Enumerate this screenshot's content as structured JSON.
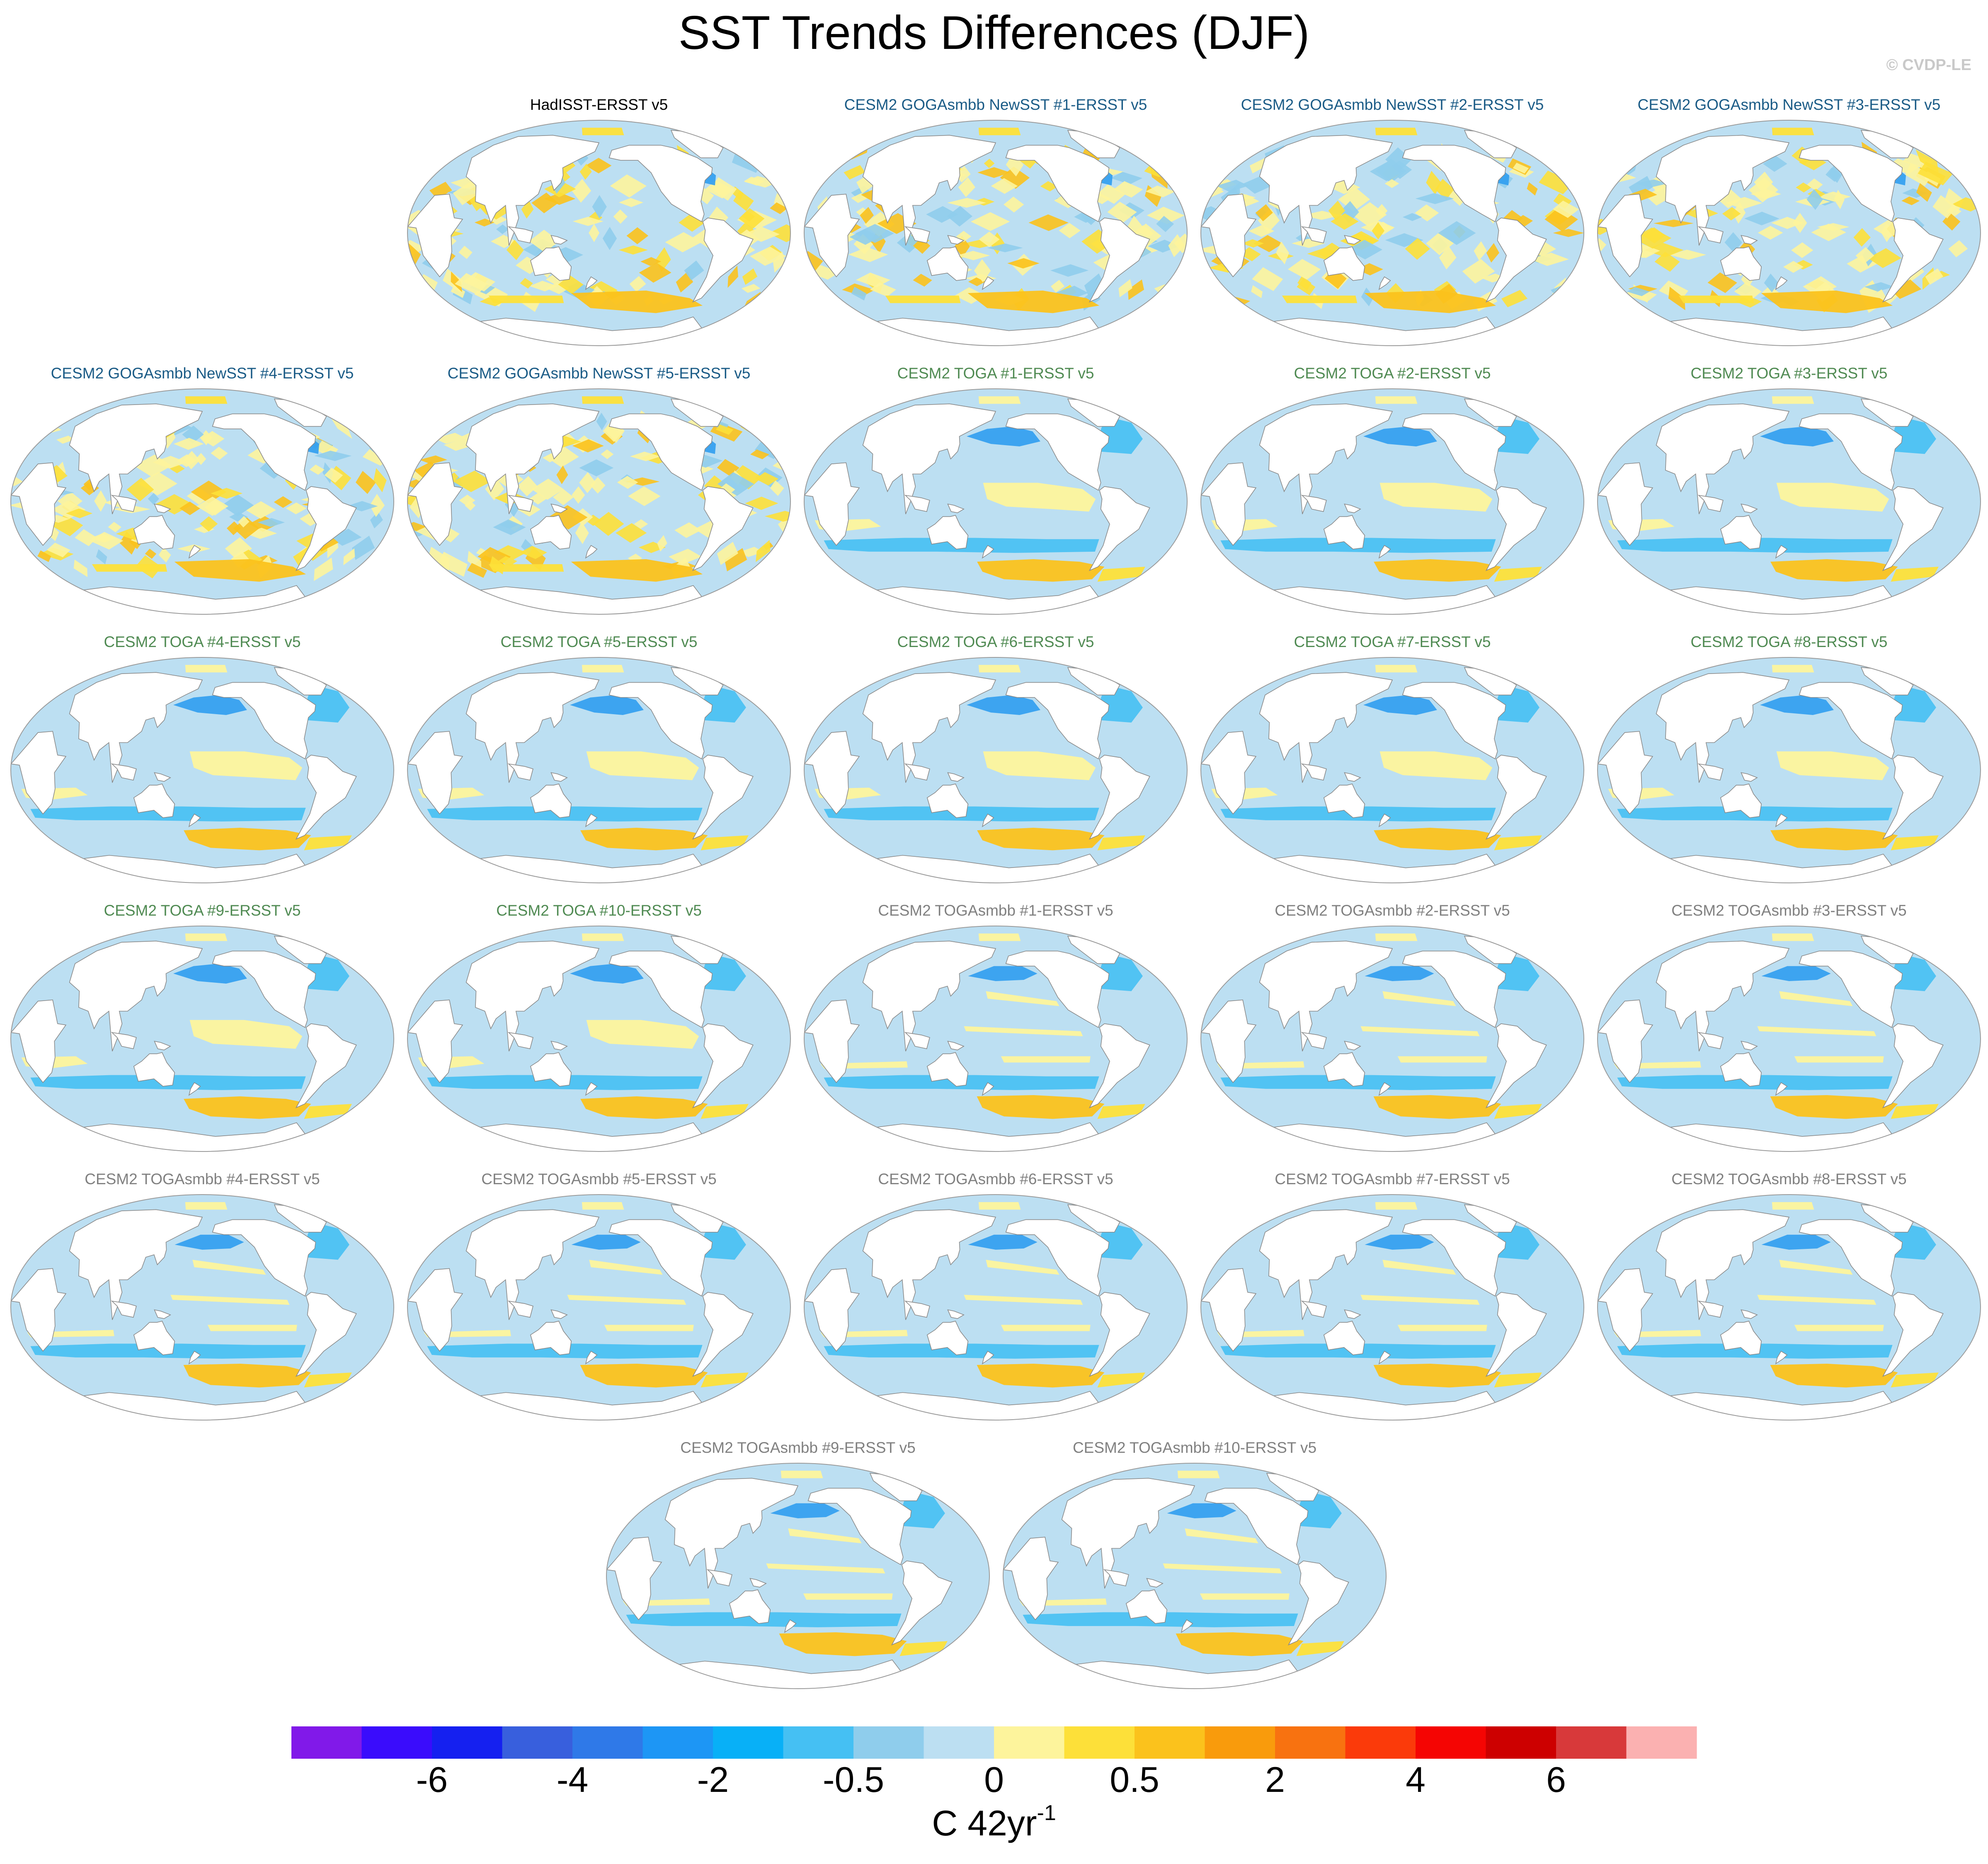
{
  "title": "SST Trends Differences (DJF)",
  "credit": "© CVDP-LE",
  "colors": {
    "obs_title": "#000000",
    "goga_title": "#1a5b86",
    "toga_title": "#4f8a52",
    "togasmbb_title": "#808080",
    "ocean": "#bcdff2",
    "land": "#ffffff",
    "coast": "#8a8a8a"
  },
  "panels": [
    {
      "title": "HadISST-ERSST v5",
      "group": "obs"
    },
    {
      "title": "CESM2 GOGAsmbb NewSST #1-ERSST v5",
      "group": "goga"
    },
    {
      "title": "CESM2 GOGAsmbb NewSST #2-ERSST v5",
      "group": "goga"
    },
    {
      "title": "CESM2 GOGAsmbb NewSST #3-ERSST v5",
      "group": "goga"
    },
    {
      "title": "CESM2 GOGAsmbb NewSST #4-ERSST v5",
      "group": "goga"
    },
    {
      "title": "CESM2 GOGAsmbb NewSST #5-ERSST v5",
      "group": "goga"
    },
    {
      "title": "CESM2 TOGA #1-ERSST v5",
      "group": "toga"
    },
    {
      "title": "CESM2 TOGA #2-ERSST v5",
      "group": "toga"
    },
    {
      "title": "CESM2 TOGA #3-ERSST v5",
      "group": "toga"
    },
    {
      "title": "CESM2 TOGA #4-ERSST v5",
      "group": "toga"
    },
    {
      "title": "CESM2 TOGA #5-ERSST v5",
      "group": "toga"
    },
    {
      "title": "CESM2 TOGA #6-ERSST v5",
      "group": "toga"
    },
    {
      "title": "CESM2 TOGA #7-ERSST v5",
      "group": "toga"
    },
    {
      "title": "CESM2 TOGA #8-ERSST v5",
      "group": "toga"
    },
    {
      "title": "CESM2 TOGA #9-ERSST v5",
      "group": "toga"
    },
    {
      "title": "CESM2 TOGA #10-ERSST v5",
      "group": "toga"
    },
    {
      "title": "CESM2 TOGAsmbb #1-ERSST v5",
      "group": "togasmbb"
    },
    {
      "title": "CESM2 TOGAsmbb #2-ERSST v5",
      "group": "togasmbb"
    },
    {
      "title": "CESM2 TOGAsmbb #3-ERSST v5",
      "group": "togasmbb"
    },
    {
      "title": "CESM2 TOGAsmbb #4-ERSST v5",
      "group": "togasmbb"
    },
    {
      "title": "CESM2 TOGAsmbb #5-ERSST v5",
      "group": "togasmbb"
    },
    {
      "title": "CESM2 TOGAsmbb #6-ERSST v5",
      "group": "togasmbb"
    },
    {
      "title": "CESM2 TOGAsmbb #7-ERSST v5",
      "group": "togasmbb"
    },
    {
      "title": "CESM2 TOGAsmbb #8-ERSST v5",
      "group": "togasmbb"
    },
    {
      "title": "CESM2 TOGAsmbb #9-ERSST v5",
      "group": "togasmbb"
    },
    {
      "title": "CESM2 TOGAsmbb #10-ERSST v5",
      "group": "togasmbb"
    }
  ],
  "colorbar": {
    "colors": [
      "#8119e9",
      "#3a0cfc",
      "#1520f0",
      "#385fdd",
      "#2f79e8",
      "#1d96f5",
      "#08b0f7",
      "#45c0f3",
      "#8fcdec",
      "#bcdff2",
      "#fdf49c",
      "#fde039",
      "#fbc21c",
      "#f99b0c",
      "#f87210",
      "#fb3a0a",
      "#f50503",
      "#cd0000",
      "#d8393a",
      "#fbb1b1"
    ],
    "tick_labels": [
      "-6",
      "-4",
      "-2",
      "-0.5",
      "0",
      "0.5",
      "2",
      "4",
      "6"
    ],
    "units_base": "C 42yr",
    "units_sup": "-1"
  }
}
